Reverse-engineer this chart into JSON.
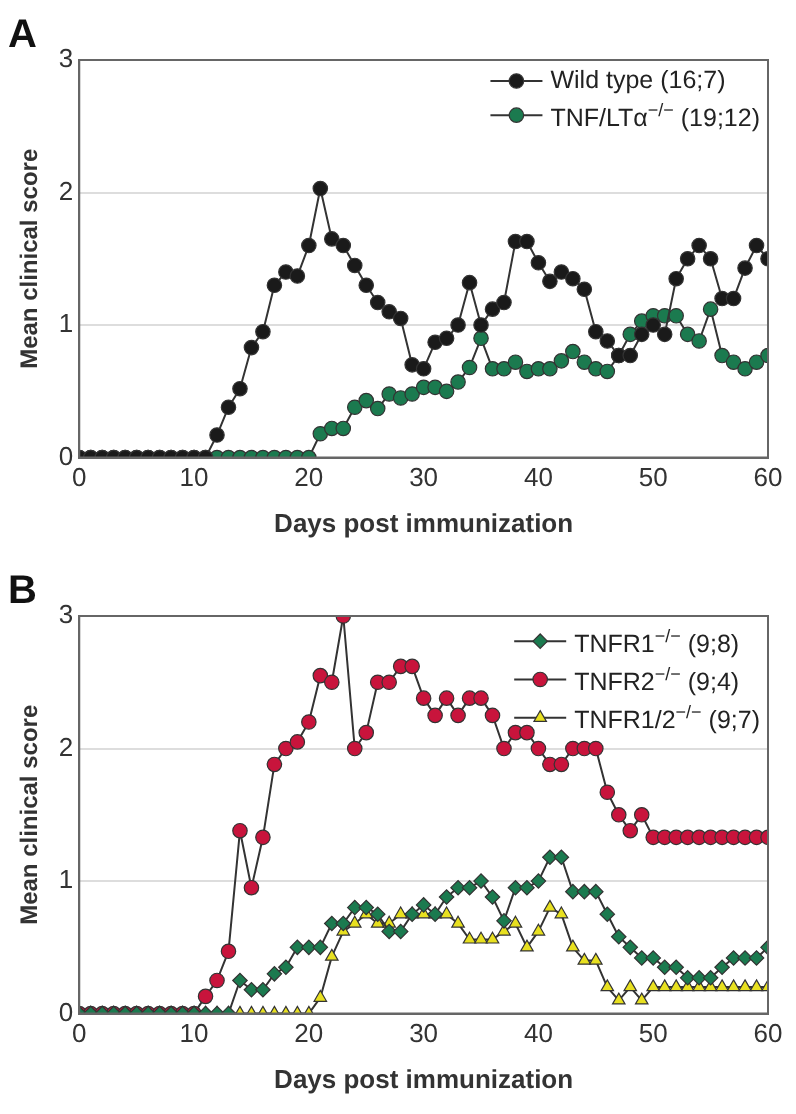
{
  "chart_data": [
    {
      "type": "line",
      "title": "A",
      "xlabel": "Days post immunization",
      "ylabel": "Mean clinical score",
      "x": [
        0,
        1,
        2,
        3,
        4,
        5,
        6,
        7,
        8,
        9,
        10,
        11,
        12,
        13,
        14,
        15,
        16,
        17,
        18,
        19,
        20,
        21,
        22,
        23,
        24,
        25,
        26,
        27,
        28,
        29,
        30,
        31,
        32,
        33,
        34,
        35,
        36,
        37,
        38,
        39,
        40,
        41,
        42,
        43,
        44,
        45,
        46,
        47,
        48,
        49,
        50,
        51,
        52,
        53,
        54,
        55,
        56,
        57,
        58,
        59,
        60
      ],
      "xlim": [
        0,
        60
      ],
      "xticks": [
        0,
        10,
        20,
        30,
        40,
        50,
        60
      ],
      "ylim": [
        0,
        3
      ],
      "yticks": [
        0,
        1,
        2,
        3
      ],
      "grid": "y",
      "legend": "top right",
      "line_style": "solid",
      "series": [
        {
          "name": "Wild type (16;7)",
          "color": "#1a1a1a",
          "marker": "circle",
          "values": [
            0,
            0,
            0,
            0,
            0,
            0,
            0,
            0,
            0,
            0,
            0,
            0,
            0.17,
            0.38,
            0.52,
            0.83,
            0.95,
            1.3,
            1.4,
            1.37,
            1.6,
            2.03,
            1.65,
            1.6,
            1.45,
            1.3,
            1.17,
            1.1,
            1.05,
            0.7,
            0.67,
            0.87,
            0.9,
            1.0,
            1.32,
            1.0,
            1.12,
            1.17,
            1.63,
            1.63,
            1.47,
            1.33,
            1.4,
            1.35,
            1.27,
            0.95,
            0.88,
            0.77,
            0.77,
            0.93,
            1.0,
            0.93,
            1.35,
            1.5,
            1.6,
            1.5,
            1.2,
            1.2,
            1.43,
            1.6,
            1.5
          ]
        },
        {
          "name": "TNF/LTα$^{−/−}$ (19;12)",
          "color": "#1b7a4f",
          "marker": "circle",
          "values": [
            0,
            0,
            0,
            0,
            0,
            0,
            0,
            0,
            0,
            0,
            0,
            0,
            0,
            0,
            0,
            0,
            0,
            0,
            0,
            0,
            0,
            0.18,
            0.22,
            0.22,
            0.38,
            0.43,
            0.37,
            0.48,
            0.45,
            0.48,
            0.53,
            0.53,
            0.5,
            0.57,
            0.68,
            0.9,
            0.67,
            0.67,
            0.72,
            0.65,
            0.67,
            0.67,
            0.73,
            0.8,
            0.72,
            0.67,
            0.65,
            0.77,
            0.93,
            1.03,
            1.07,
            1.07,
            1.07,
            0.93,
            0.88,
            1.12,
            0.77,
            0.72,
            0.67,
            0.72,
            0.77
          ]
        }
      ]
    },
    {
      "type": "line",
      "title": "B",
      "xlabel": "Days post immunization",
      "ylabel": "Mean clinical score",
      "x": [
        0,
        1,
        2,
        3,
        4,
        5,
        6,
        7,
        8,
        9,
        10,
        11,
        12,
        13,
        14,
        15,
        16,
        17,
        18,
        19,
        20,
        21,
        22,
        23,
        24,
        25,
        26,
        27,
        28,
        29,
        30,
        31,
        32,
        33,
        34,
        35,
        36,
        37,
        38,
        39,
        40,
        41,
        42,
        43,
        44,
        45,
        46,
        47,
        48,
        49,
        50,
        51,
        52,
        53,
        54,
        55,
        56,
        57,
        58,
        59,
        60
      ],
      "xlim": [
        0,
        60
      ],
      "xticks": [
        0,
        10,
        20,
        30,
        40,
        50,
        60
      ],
      "ylim": [
        0,
        3
      ],
      "yticks": [
        0,
        1,
        2,
        3
      ],
      "grid": "y",
      "legend": "top right",
      "line_style": "solid",
      "series": [
        {
          "name": "TNFR1$^{−/−}$ (9;8)",
          "color": "#1b7a4f",
          "marker": "diamond",
          "values": [
            0,
            0,
            0,
            0,
            0,
            0,
            0,
            0,
            0,
            0,
            0,
            0,
            0,
            0,
            0.25,
            0.18,
            0.18,
            0.3,
            0.35,
            0.5,
            0.5,
            0.5,
            0.68,
            0.68,
            0.8,
            0.8,
            0.75,
            0.62,
            0.62,
            0.75,
            0.82,
            0.75,
            0.88,
            0.95,
            0.95,
            1.0,
            0.88,
            0.7,
            0.95,
            0.95,
            1.0,
            1.18,
            1.18,
            0.92,
            0.92,
            0.92,
            0.75,
            0.58,
            0.5,
            0.42,
            0.42,
            0.35,
            0.35,
            0.27,
            0.27,
            0.27,
            0.35,
            0.42,
            0.42,
            0.42,
            0.5
          ]
        },
        {
          "name": "TNFR2$^{−/−}$ (9;4)",
          "color": "#c8143c",
          "marker": "circle",
          "values": [
            0,
            0,
            0,
            0,
            0,
            0,
            0,
            0,
            0,
            0,
            0,
            0.13,
            0.25,
            0.47,
            1.38,
            0.95,
            1.33,
            1.88,
            2.0,
            2.05,
            2.2,
            2.55,
            2.5,
            3.0,
            2.0,
            2.12,
            2.5,
            2.5,
            2.62,
            2.62,
            2.38,
            2.25,
            2.38,
            2.25,
            2.38,
            2.38,
            2.25,
            2.0,
            2.12,
            2.12,
            2.0,
            1.88,
            1.88,
            2.0,
            2.0,
            2.0,
            1.67,
            1.5,
            1.38,
            1.5,
            1.33,
            1.33,
            1.33,
            1.33,
            1.33,
            1.33,
            1.33,
            1.33,
            1.33,
            1.33,
            1.33
          ]
        },
        {
          "name": "TNFR1/2$^{−/−}$ (9;7)",
          "color": "#e8e020",
          "marker": "triangle",
          "values": [
            0,
            0,
            0,
            0,
            0,
            0,
            0,
            0,
            0,
            0,
            0,
            0,
            0,
            0,
            0,
            0,
            0,
            0,
            0,
            0,
            0,
            0.12,
            0.43,
            0.62,
            0.68,
            0.75,
            0.68,
            0.68,
            0.75,
            0.75,
            0.75,
            0.75,
            0.75,
            0.68,
            0.56,
            0.56,
            0.56,
            0.62,
            0.68,
            0.5,
            0.62,
            0.8,
            0.75,
            0.5,
            0.4,
            0.4,
            0.2,
            0.1,
            0.2,
            0.1,
            0.2,
            0.2,
            0.2,
            0.2,
            0.2,
            0.2,
            0.2,
            0.2,
            0.2,
            0.2,
            0.2
          ]
        }
      ]
    }
  ]
}
